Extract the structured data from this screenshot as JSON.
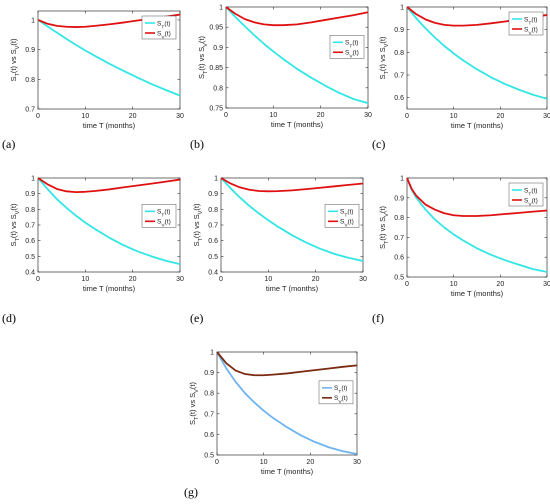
{
  "chart_data": [
    {
      "type": "line",
      "panel_label": "(a)",
      "xlabel": "time T (months)",
      "ylabel": "S_T(t) vs S_V(t)",
      "xlim": [
        0,
        30
      ],
      "ylim": [
        0.7,
        1.03
      ],
      "xticks": [
        0,
        10,
        20,
        30
      ],
      "yticks": [
        0.7,
        0.8,
        0.9,
        1
      ],
      "legend_position": "upper-right",
      "series": [
        {
          "name": "S_T(t)",
          "color": "#33e6e6",
          "x": [
            0,
            2,
            4,
            6,
            8,
            10,
            12,
            15,
            18,
            21,
            24,
            27,
            30
          ],
          "y": [
            1.0,
            0.978,
            0.957,
            0.936,
            0.916,
            0.897,
            0.879,
            0.853,
            0.829,
            0.806,
            0.784,
            0.764,
            0.745
          ]
        },
        {
          "name": "S_V(t)",
          "color": "#e01010",
          "x": [
            0,
            2,
            4,
            6,
            8,
            10,
            12,
            15,
            18,
            21,
            24,
            27,
            30
          ],
          "y": [
            1.0,
            0.987,
            0.98,
            0.977,
            0.976,
            0.977,
            0.98,
            0.985,
            0.991,
            0.998,
            1.004,
            1.011,
            1.018
          ]
        }
      ]
    },
    {
      "type": "line",
      "panel_label": "(b)",
      "xlabel": "time T (months)",
      "ylabel": "S_T(t) vs S_V(t)",
      "xlim": [
        0,
        30
      ],
      "ylim": [
        0.75,
        1.0
      ],
      "xticks": [
        0,
        10,
        20,
        30
      ],
      "yticks": [
        0.75,
        0.8,
        0.85,
        0.9,
        0.95,
        1
      ],
      "legend_position": "right",
      "series": [
        {
          "name": "S_T(t)",
          "color": "#33e6e6",
          "x": [
            0,
            2,
            4,
            6,
            8,
            10,
            12,
            15,
            18,
            21,
            24,
            27,
            30
          ],
          "y": [
            1.0,
            0.975,
            0.952,
            0.93,
            0.909,
            0.89,
            0.872,
            0.847,
            0.825,
            0.805,
            0.787,
            0.772,
            0.762
          ]
        },
        {
          "name": "S_V(t)",
          "color": "#e01010",
          "x": [
            0,
            2,
            4,
            6,
            8,
            10,
            12,
            15,
            18,
            21,
            24,
            27,
            30
          ],
          "y": [
            1.0,
            0.983,
            0.97,
            0.962,
            0.957,
            0.955,
            0.955,
            0.957,
            0.962,
            0.968,
            0.974,
            0.98,
            0.987
          ]
        }
      ]
    },
    {
      "type": "line",
      "panel_label": "(c)",
      "xlabel": "time T (months)",
      "ylabel": "S_T(t) vs S_V(t)",
      "xlim": [
        0,
        30
      ],
      "ylim": [
        0.55,
        1.0
      ],
      "xticks": [
        0,
        10,
        20,
        30
      ],
      "yticks": [
        0.6,
        0.7,
        0.8,
        0.9,
        1
      ],
      "legend_position": "upper-right",
      "series": [
        {
          "name": "S_T(t)",
          "color": "#33e6e6",
          "x": [
            0,
            2,
            4,
            6,
            8,
            10,
            12,
            15,
            18,
            21,
            24,
            27,
            30
          ],
          "y": [
            1.0,
            0.95,
            0.905,
            0.865,
            0.828,
            0.795,
            0.765,
            0.725,
            0.69,
            0.66,
            0.635,
            0.613,
            0.595
          ]
        },
        {
          "name": "S_V(t)",
          "color": "#e01010",
          "x": [
            0,
            2,
            4,
            6,
            8,
            10,
            12,
            15,
            18,
            21,
            24,
            27,
            30
          ],
          "y": [
            1.0,
            0.968,
            0.945,
            0.93,
            0.921,
            0.918,
            0.918,
            0.921,
            0.928,
            0.936,
            0.945,
            0.955,
            0.965
          ]
        }
      ]
    },
    {
      "type": "line",
      "panel_label": "(d)",
      "xlabel": "time T (months)",
      "ylabel": "S_T(t) vs S_V(t)",
      "xlim": [
        0,
        30
      ],
      "ylim": [
        0.4,
        1.0
      ],
      "xticks": [
        0,
        10,
        20,
        30
      ],
      "yticks": [
        0.4,
        0.5,
        0.6,
        0.7,
        0.8,
        0.9,
        1
      ],
      "legend_position": "right",
      "series": [
        {
          "name": "S_T(t)",
          "color": "#33e6e6",
          "x": [
            0,
            2,
            4,
            6,
            8,
            10,
            12,
            15,
            18,
            21,
            24,
            27,
            30
          ],
          "y": [
            1.0,
            0.93,
            0.865,
            0.81,
            0.76,
            0.715,
            0.675,
            0.62,
            0.572,
            0.532,
            0.5,
            0.472,
            0.45
          ]
        },
        {
          "name": "S_V(t)",
          "color": "#e01010",
          "x": [
            0,
            2,
            4,
            6,
            8,
            10,
            12,
            15,
            18,
            21,
            24,
            27,
            30
          ],
          "y": [
            1.0,
            0.96,
            0.93,
            0.915,
            0.91,
            0.912,
            0.917,
            0.927,
            0.94,
            0.952,
            0.964,
            0.977,
            0.99
          ]
        }
      ]
    },
    {
      "type": "line",
      "panel_label": "(e)",
      "xlabel": "time T (months)",
      "ylabel": "S_T(t) vs S_V(t)",
      "xlim": [
        0,
        30
      ],
      "ylim": [
        0.4,
        1.0
      ],
      "xticks": [
        0,
        10,
        20,
        30
      ],
      "yticks": [
        0.4,
        0.5,
        0.6,
        0.7,
        0.8,
        0.9,
        1
      ],
      "legend_position": "right",
      "series": [
        {
          "name": "S_T(t)",
          "color": "#33e6e6",
          "x": [
            0,
            2,
            4,
            6,
            8,
            10,
            12,
            15,
            18,
            21,
            24,
            27,
            30
          ],
          "y": [
            1.0,
            0.935,
            0.875,
            0.822,
            0.774,
            0.73,
            0.69,
            0.635,
            0.588,
            0.548,
            0.515,
            0.49,
            0.47
          ]
        },
        {
          "name": "S_V(t)",
          "color": "#e01010",
          "x": [
            0,
            2,
            4,
            6,
            8,
            10,
            12,
            15,
            18,
            21,
            24,
            27,
            30
          ],
          "y": [
            1.0,
            0.965,
            0.94,
            0.925,
            0.917,
            0.915,
            0.916,
            0.921,
            0.929,
            0.938,
            0.947,
            0.956,
            0.965
          ]
        }
      ]
    },
    {
      "type": "line",
      "panel_label": "(f)",
      "xlabel": "time T (months)",
      "ylabel": "S_T(t) vs S_V(t)",
      "xlim": [
        0,
        30
      ],
      "ylim": [
        0.5,
        1.0
      ],
      "xticks": [
        0,
        10,
        20,
        30
      ],
      "yticks": [
        0.5,
        0.6,
        0.7,
        0.8,
        0.9,
        1
      ],
      "legend_position": "upper-right",
      "series": [
        {
          "name": "S_T(t)",
          "color": "#33e6e6",
          "x": [
            0,
            1,
            2,
            4,
            6,
            8,
            10,
            12,
            15,
            18,
            21,
            24,
            27,
            30
          ],
          "y": [
            1.0,
            0.94,
            0.9,
            0.84,
            0.79,
            0.75,
            0.715,
            0.685,
            0.645,
            0.612,
            0.585,
            0.562,
            0.54,
            0.525
          ]
        },
        {
          "name": "S_V(t)",
          "color": "#e01010",
          "x": [
            0,
            1,
            2,
            4,
            6,
            8,
            10,
            12,
            15,
            18,
            21,
            24,
            27,
            30
          ],
          "y": [
            1.0,
            0.945,
            0.91,
            0.865,
            0.84,
            0.822,
            0.812,
            0.808,
            0.808,
            0.812,
            0.818,
            0.824,
            0.83,
            0.836
          ]
        }
      ]
    },
    {
      "type": "line",
      "panel_label": "(g)",
      "xlabel": "time T (months)",
      "ylabel": "S_T(t) vs S_V(t)",
      "xlim": [
        0,
        30
      ],
      "ylim": [
        0.5,
        1.0
      ],
      "xticks": [
        0,
        10,
        20,
        30
      ],
      "yticks": [
        0.5,
        0.6,
        0.7,
        0.8,
        0.9,
        1
      ],
      "legend_position": "right",
      "series": [
        {
          "name": "S_T(t)",
          "color": "#6fb4f0",
          "x": [
            0,
            2,
            4,
            6,
            8,
            10,
            12,
            15,
            18,
            21,
            24,
            27,
            30
          ],
          "y": [
            1.0,
            0.92,
            0.855,
            0.8,
            0.755,
            0.715,
            0.68,
            0.635,
            0.595,
            0.563,
            0.537,
            0.518,
            0.505
          ]
        },
        {
          "name": "S_V(t)",
          "color": "#7a2a10",
          "x": [
            0,
            2,
            4,
            6,
            8,
            10,
            12,
            15,
            18,
            21,
            24,
            27,
            30
          ],
          "y": [
            1.0,
            0.945,
            0.91,
            0.893,
            0.887,
            0.887,
            0.89,
            0.896,
            0.904,
            0.912,
            0.92,
            0.928,
            0.935
          ]
        }
      ]
    }
  ]
}
